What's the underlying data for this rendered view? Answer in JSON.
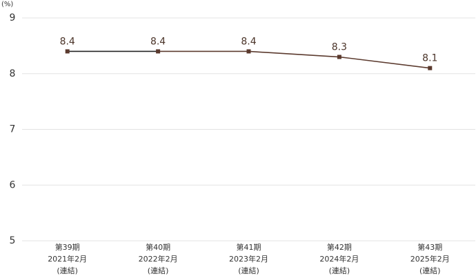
{
  "chart_data": {
    "type": "line",
    "unit_label": "(%)",
    "categories": [
      [
        "第39期",
        "2021年2月",
        "(連結)"
      ],
      [
        "第40期",
        "2022年2月",
        "(連結)"
      ],
      [
        "第41期",
        "2023年2月",
        "(連結)"
      ],
      [
        "第42期",
        "2024年2月",
        "(連結)"
      ],
      [
        "第43期",
        "2025年2月",
        "(連結)"
      ]
    ],
    "values": [
      8.4,
      8.4,
      8.4,
      8.3,
      8.1
    ],
    "color": "#5b3a2e",
    "first_segment_color": "#222222",
    "ylim": [
      5,
      9
    ],
    "yticks": [
      5,
      6,
      7,
      8,
      9
    ],
    "grid": true
  }
}
